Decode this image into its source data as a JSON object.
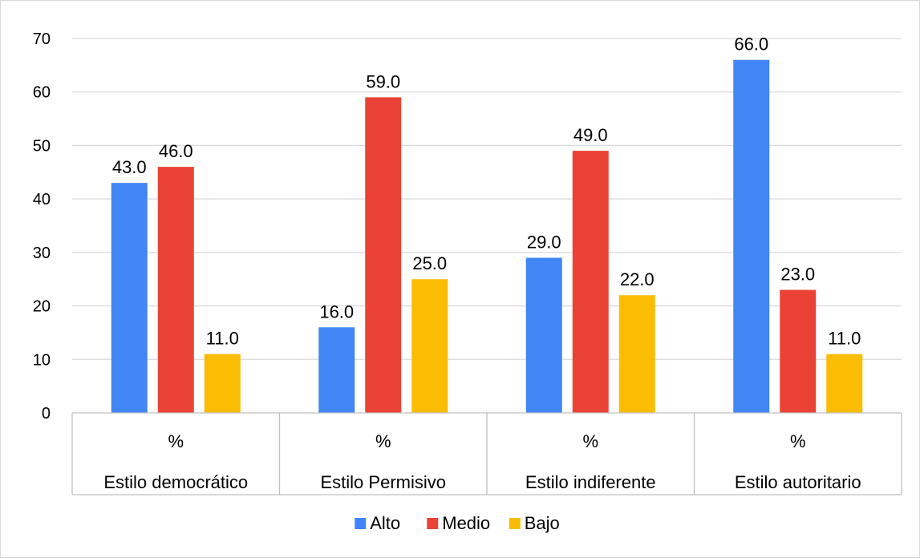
{
  "chart_data": {
    "type": "bar",
    "title": "",
    "xlabel": "",
    "ylabel": "",
    "ylim": [
      0,
      70
    ],
    "yticks": [
      0,
      10,
      20,
      30,
      40,
      50,
      60,
      70
    ],
    "grid": true,
    "legend_position": "bottom",
    "value_format": "0.0",
    "categories": [
      {
        "group": "Estilo democrático",
        "sublabel": "%"
      },
      {
        "group": "Estilo Permisivo",
        "sublabel": "%"
      },
      {
        "group": "Estilo indiferente",
        "sublabel": "%"
      },
      {
        "group": "Estilo autoritario",
        "sublabel": "%"
      }
    ],
    "series": [
      {
        "name": "Alto",
        "color": "#4285f4",
        "values": [
          43.0,
          16.0,
          29.0,
          66.0
        ]
      },
      {
        "name": "Medio",
        "color": "#ea4335",
        "values": [
          46.0,
          59.0,
          49.0,
          23.0
        ]
      },
      {
        "name": "Bajo",
        "color": "#fbbc04",
        "values": [
          11.0,
          25.0,
          22.0,
          11.0
        ]
      }
    ]
  }
}
